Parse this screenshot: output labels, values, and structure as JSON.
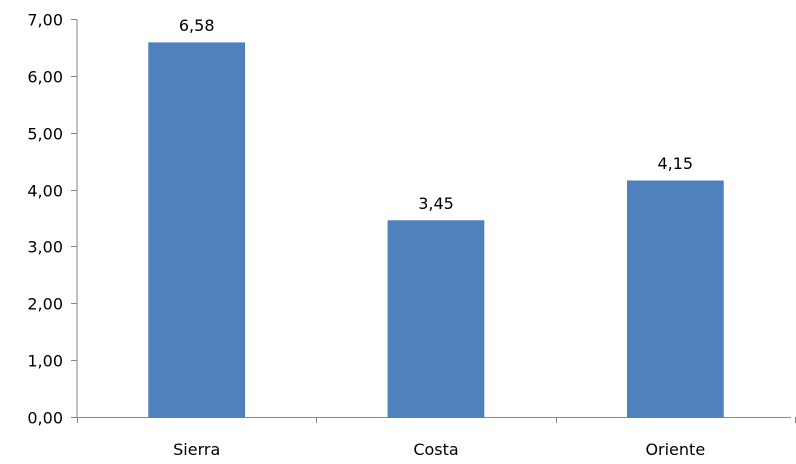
{
  "chart_data": {
    "type": "bar",
    "categories": [
      "Sierra",
      "Costa",
      "Oriente"
    ],
    "values": [
      6.58,
      3.45,
      4.15
    ],
    "value_labels": [
      "6,58",
      "3,45",
      "4,15"
    ],
    "ylim": [
      0,
      7
    ],
    "y_ticks": [
      0,
      1,
      2,
      3,
      4,
      5,
      6,
      7
    ],
    "y_tick_labels": [
      "0,00",
      "1,00",
      "2,00",
      "3,00",
      "4,00",
      "5,00",
      "6,00",
      "7,00"
    ],
    "grid": false,
    "legend": "none",
    "title": "",
    "xlabel": "",
    "ylabel": "",
    "colors": {
      "bar": "#4F81BD",
      "bar_edge": "#4A7EBB",
      "axis": "#868686"
    }
  }
}
